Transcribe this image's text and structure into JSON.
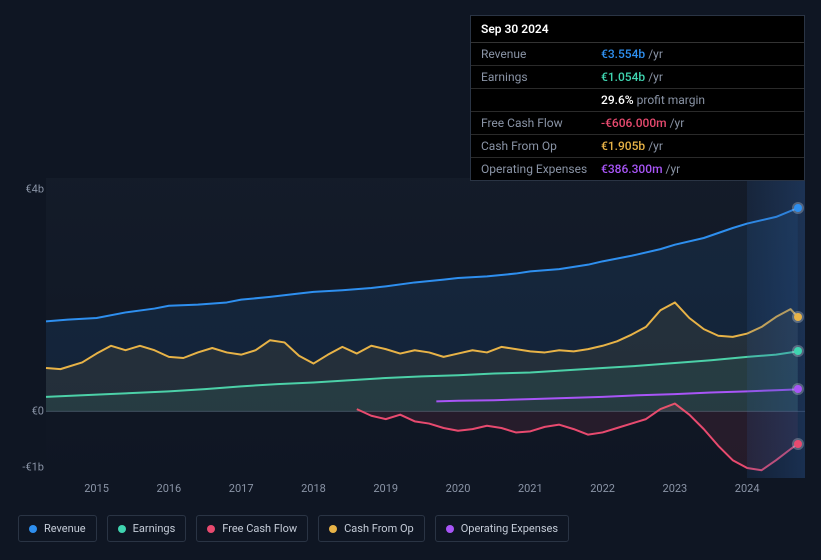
{
  "tooltip": {
    "date": "Sep 30 2024",
    "rows": [
      {
        "label": "Revenue",
        "value": "€3.554b",
        "suffix": "/yr",
        "color": "#2e8fef"
      },
      {
        "label": "Earnings",
        "value": "€1.054b",
        "suffix": "/yr",
        "color": "#3fd4b0"
      },
      {
        "label": "",
        "value": "29.6%",
        "suffix": "profit margin",
        "color": "#ffffff"
      },
      {
        "label": "Free Cash Flow",
        "value": "-€606.000m",
        "suffix": "/yr",
        "color": "#e84a6f"
      },
      {
        "label": "Cash From Op",
        "value": "€1.905b",
        "suffix": "/yr",
        "color": "#e8b347"
      },
      {
        "label": "Operating Expenses",
        "value": "€386.300m",
        "suffix": "/yr",
        "color": "#a855f7"
      }
    ]
  },
  "chart": {
    "type": "line",
    "background_color": "#0f1623",
    "plot_bg": "rgba(30,40,55,0.2)",
    "x_years": [
      2015,
      2016,
      2017,
      2018,
      2019,
      2020,
      2021,
      2022,
      2023,
      2024
    ],
    "xlim": [
      2014.3,
      2024.8
    ],
    "ylim": [
      -1200,
      4200
    ],
    "y_ticks": [
      {
        "v": 4000,
        "label": "€4b"
      },
      {
        "v": 0,
        "label": "€0"
      },
      {
        "v": -1000,
        "label": "-€1b"
      }
    ],
    "highlight_x": [
      2024.0,
      2024.8
    ],
    "line_width": 2,
    "series": [
      {
        "name": "Revenue",
        "color": "#2e8fef",
        "fill": "rgba(46,143,239,0.10)",
        "baseline": 0,
        "points": [
          [
            2014.3,
            1620
          ],
          [
            2014.6,
            1650
          ],
          [
            2015.0,
            1680
          ],
          [
            2015.4,
            1780
          ],
          [
            2015.8,
            1850
          ],
          [
            2016.0,
            1900
          ],
          [
            2016.4,
            1920
          ],
          [
            2016.8,
            1960
          ],
          [
            2017.0,
            2010
          ],
          [
            2017.4,
            2060
          ],
          [
            2017.8,
            2120
          ],
          [
            2018.0,
            2150
          ],
          [
            2018.4,
            2180
          ],
          [
            2018.8,
            2220
          ],
          [
            2019.0,
            2250
          ],
          [
            2019.4,
            2320
          ],
          [
            2019.8,
            2370
          ],
          [
            2020.0,
            2400
          ],
          [
            2020.4,
            2430
          ],
          [
            2020.8,
            2480
          ],
          [
            2021.0,
            2520
          ],
          [
            2021.4,
            2560
          ],
          [
            2021.8,
            2640
          ],
          [
            2022.0,
            2700
          ],
          [
            2022.4,
            2800
          ],
          [
            2022.8,
            2920
          ],
          [
            2023.0,
            3000
          ],
          [
            2023.4,
            3120
          ],
          [
            2023.8,
            3300
          ],
          [
            2024.0,
            3380
          ],
          [
            2024.4,
            3500
          ],
          [
            2024.7,
            3660
          ]
        ],
        "end_dot": true
      },
      {
        "name": "Earnings",
        "color": "#3fd4b0",
        "fill": "rgba(63,212,176,0.08)",
        "baseline": 0,
        "points": [
          [
            2014.3,
            260
          ],
          [
            2015.0,
            300
          ],
          [
            2015.5,
            330
          ],
          [
            2016.0,
            360
          ],
          [
            2016.5,
            400
          ],
          [
            2017.0,
            450
          ],
          [
            2017.5,
            490
          ],
          [
            2018.0,
            520
          ],
          [
            2018.5,
            560
          ],
          [
            2019.0,
            600
          ],
          [
            2019.5,
            630
          ],
          [
            2020.0,
            650
          ],
          [
            2020.5,
            680
          ],
          [
            2021.0,
            700
          ],
          [
            2021.5,
            740
          ],
          [
            2022.0,
            780
          ],
          [
            2022.5,
            820
          ],
          [
            2023.0,
            870
          ],
          [
            2023.5,
            920
          ],
          [
            2024.0,
            980
          ],
          [
            2024.4,
            1020
          ],
          [
            2024.7,
            1080
          ]
        ],
        "end_dot": true
      },
      {
        "name": "Free Cash Flow",
        "color": "#e84a6f",
        "fill": "rgba(232,74,111,0.10)",
        "baseline": 0,
        "points": [
          [
            2018.6,
            40
          ],
          [
            2018.8,
            -80
          ],
          [
            2019.0,
            -140
          ],
          [
            2019.2,
            -60
          ],
          [
            2019.4,
            -180
          ],
          [
            2019.6,
            -220
          ],
          [
            2019.8,
            -300
          ],
          [
            2020.0,
            -350
          ],
          [
            2020.2,
            -320
          ],
          [
            2020.4,
            -260
          ],
          [
            2020.6,
            -300
          ],
          [
            2020.8,
            -380
          ],
          [
            2021.0,
            -360
          ],
          [
            2021.2,
            -280
          ],
          [
            2021.4,
            -240
          ],
          [
            2021.6,
            -320
          ],
          [
            2021.8,
            -420
          ],
          [
            2022.0,
            -380
          ],
          [
            2022.2,
            -300
          ],
          [
            2022.4,
            -220
          ],
          [
            2022.6,
            -140
          ],
          [
            2022.8,
            40
          ],
          [
            2023.0,
            140
          ],
          [
            2023.2,
            -60
          ],
          [
            2023.4,
            -320
          ],
          [
            2023.6,
            -620
          ],
          [
            2023.8,
            -880
          ],
          [
            2024.0,
            -1020
          ],
          [
            2024.2,
            -1060
          ],
          [
            2024.4,
            -880
          ],
          [
            2024.6,
            -680
          ],
          [
            2024.7,
            -590
          ]
        ],
        "end_dot": true
      },
      {
        "name": "Cash From Op",
        "color": "#e8b347",
        "fill": "rgba(232,179,71,0.08)",
        "baseline": 0,
        "points": [
          [
            2014.3,
            780
          ],
          [
            2014.5,
            760
          ],
          [
            2014.8,
            880
          ],
          [
            2015.0,
            1040
          ],
          [
            2015.2,
            1180
          ],
          [
            2015.4,
            1100
          ],
          [
            2015.6,
            1180
          ],
          [
            2015.8,
            1100
          ],
          [
            2016.0,
            980
          ],
          [
            2016.2,
            960
          ],
          [
            2016.4,
            1060
          ],
          [
            2016.6,
            1140
          ],
          [
            2016.8,
            1060
          ],
          [
            2017.0,
            1020
          ],
          [
            2017.2,
            1100
          ],
          [
            2017.4,
            1280
          ],
          [
            2017.6,
            1240
          ],
          [
            2017.8,
            1000
          ],
          [
            2018.0,
            860
          ],
          [
            2018.2,
            1020
          ],
          [
            2018.4,
            1160
          ],
          [
            2018.6,
            1040
          ],
          [
            2018.8,
            1180
          ],
          [
            2019.0,
            1120
          ],
          [
            2019.2,
            1040
          ],
          [
            2019.4,
            1100
          ],
          [
            2019.6,
            1060
          ],
          [
            2019.8,
            980
          ],
          [
            2020.0,
            1040
          ],
          [
            2020.2,
            1100
          ],
          [
            2020.4,
            1060
          ],
          [
            2020.6,
            1160
          ],
          [
            2020.8,
            1120
          ],
          [
            2021.0,
            1080
          ],
          [
            2021.2,
            1060
          ],
          [
            2021.4,
            1100
          ],
          [
            2021.6,
            1080
          ],
          [
            2021.8,
            1120
          ],
          [
            2022.0,
            1180
          ],
          [
            2022.2,
            1260
          ],
          [
            2022.4,
            1380
          ],
          [
            2022.6,
            1520
          ],
          [
            2022.8,
            1820
          ],
          [
            2023.0,
            1960
          ],
          [
            2023.2,
            1680
          ],
          [
            2023.4,
            1480
          ],
          [
            2023.6,
            1360
          ],
          [
            2023.8,
            1340
          ],
          [
            2024.0,
            1400
          ],
          [
            2024.2,
            1520
          ],
          [
            2024.4,
            1700
          ],
          [
            2024.6,
            1840
          ],
          [
            2024.7,
            1700
          ]
        ],
        "end_dot": true
      },
      {
        "name": "Operating Expenses",
        "color": "#a855f7",
        "fill": null,
        "baseline": null,
        "points": [
          [
            2019.7,
            180
          ],
          [
            2020.0,
            190
          ],
          [
            2020.5,
            200
          ],
          [
            2021.0,
            220
          ],
          [
            2021.5,
            240
          ],
          [
            2022.0,
            260
          ],
          [
            2022.5,
            290
          ],
          [
            2023.0,
            310
          ],
          [
            2023.5,
            340
          ],
          [
            2024.0,
            360
          ],
          [
            2024.4,
            380
          ],
          [
            2024.7,
            395
          ]
        ],
        "end_dot": true
      }
    ]
  },
  "legend": [
    {
      "label": "Revenue",
      "color": "#2e8fef"
    },
    {
      "label": "Earnings",
      "color": "#3fd4b0"
    },
    {
      "label": "Free Cash Flow",
      "color": "#e84a6f"
    },
    {
      "label": "Cash From Op",
      "color": "#e8b347"
    },
    {
      "label": "Operating Expenses",
      "color": "#a855f7"
    }
  ]
}
